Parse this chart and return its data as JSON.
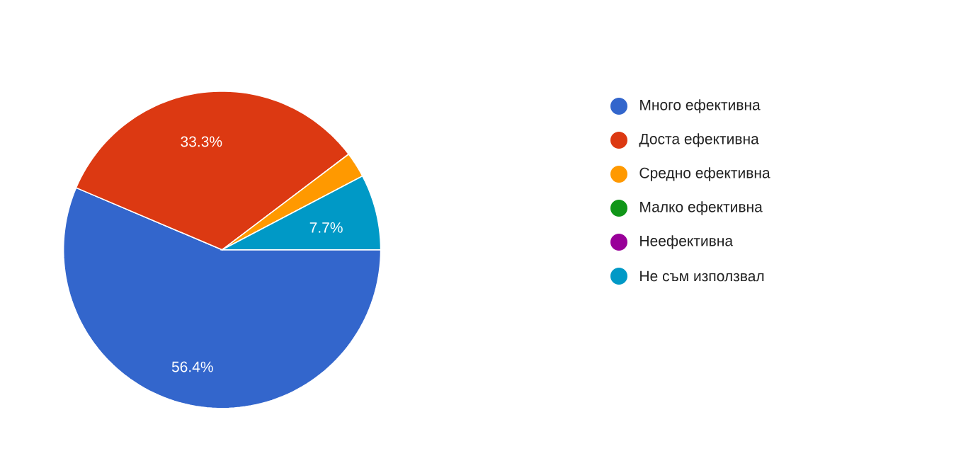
{
  "chart_data": {
    "type": "pie",
    "categories": [
      "Много ефективна",
      "Доста ефективна",
      "Средно ефективна",
      "Малко ефективна",
      "Неефективна",
      "Не съм използвал"
    ],
    "values": [
      56.4,
      33.3,
      2.6,
      0,
      0,
      7.7
    ],
    "colors": [
      "#3366cc",
      "#dc3912",
      "#ff9900",
      "#109618",
      "#990099",
      "#0099c6"
    ],
    "value_labels": [
      "56.4%",
      "33.3%",
      null,
      null,
      null,
      "7.7%"
    ],
    "legend": "right"
  }
}
